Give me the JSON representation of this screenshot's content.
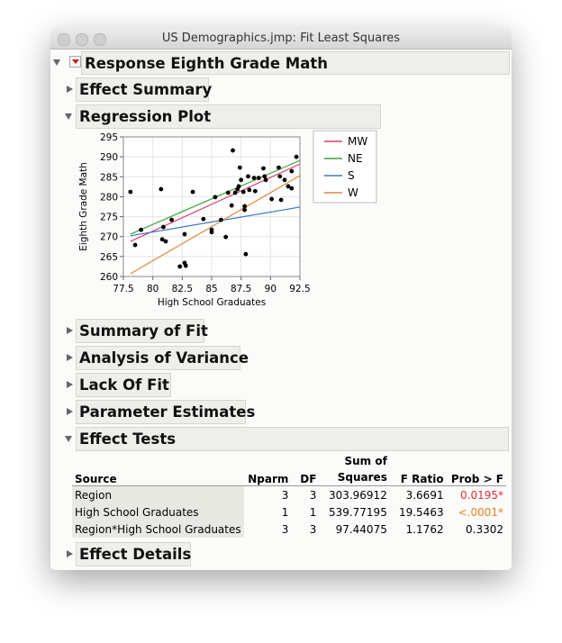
{
  "window": {
    "title": "US Demographics.jmp: Fit Least Squares"
  },
  "report": {
    "title": "Response Eighth Grade Math",
    "sections": [
      {
        "title": "Effect Summary",
        "open": false
      },
      {
        "title": "Regression Plot",
        "open": true
      },
      {
        "title": "Summary of Fit",
        "open": false
      },
      {
        "title": "Analysis of Variance",
        "open": false
      },
      {
        "title": "Lack Of Fit",
        "open": false
      },
      {
        "title": "Parameter Estimates",
        "open": false
      },
      {
        "title": "Effect Tests",
        "open": true
      },
      {
        "title": "Effect Details",
        "open": false
      }
    ]
  },
  "chart_data": {
    "type": "scatter",
    "x_label": "High School Graduates",
    "y_label": "Eighth Grade Math",
    "xlim": [
      77.5,
      92.5
    ],
    "xticks": [
      77.5,
      80,
      82.5,
      85,
      87.5,
      90,
      92.5
    ],
    "ylim": [
      260,
      295
    ],
    "yticks": [
      260,
      265,
      270,
      275,
      280,
      285,
      290,
      295
    ],
    "grid": true,
    "point_color": "#000000",
    "x": [
      78.1,
      78.5,
      79.0,
      80.7,
      80.9,
      80.8,
      81.1,
      81.6,
      82.3,
      82.7,
      82.8,
      82.7,
      83.4,
      84.3,
      85.0,
      85.0,
      85.3,
      85.8,
      86.2,
      86.4,
      86.8,
      86.7,
      87.0,
      87.2,
      87.3,
      87.4,
      87.5,
      87.7,
      87.8,
      87.8,
      87.9,
      88.2,
      88.1,
      88.6,
      88.7,
      89.0,
      89.4,
      89.6,
      89.5,
      90.1,
      90.7,
      90.8,
      90.9,
      91.2,
      91.5,
      91.8,
      92.2,
      91.8
    ],
    "values": [
      281.2,
      267.9,
      271.7,
      281.9,
      272.4,
      269.3,
      268.8,
      274.2,
      262.5,
      263.4,
      262.7,
      270.6,
      281.2,
      274.4,
      271.7,
      271.1,
      279.9,
      274.2,
      269.9,
      281.0,
      291.6,
      277.8,
      281.0,
      281.9,
      282.6,
      287.3,
      284.2,
      281.2,
      277.6,
      276.7,
      265.6,
      281.7,
      285.1,
      284.7,
      281.4,
      284.7,
      287.1,
      284.2,
      285.1,
      279.4,
      287.3,
      285.1,
      279.2,
      284.2,
      282.6,
      286.4,
      290.0,
      282.1
    ],
    "series": [
      {
        "name": "MW",
        "color": "#d6416e",
        "x": [
          78.1,
          92.5
        ],
        "values": [
          268.8,
          288.2
        ]
      },
      {
        "name": "NE",
        "color": "#3aa63a",
        "x": [
          78.1,
          92.5
        ],
        "values": [
          270.6,
          289.1
        ]
      },
      {
        "name": "S",
        "color": "#3b78c2",
        "x": [
          78.1,
          92.5
        ],
        "values": [
          270.2,
          277.4
        ]
      },
      {
        "name": "W",
        "color": "#d98a3c",
        "x": [
          78.1,
          92.5
        ],
        "values": [
          260.7,
          285.3
        ]
      }
    ]
  },
  "effect_tests": {
    "columns": [
      "Source",
      "Nparm",
      "DF",
      "Sum of Squares",
      "F Ratio",
      "Prob > F"
    ],
    "rows": [
      [
        "Region",
        3,
        3,
        303.96912,
        3.6691,
        "0.0195*"
      ],
      [
        "High School Graduates",
        1,
        1,
        539.77195,
        19.5463,
        "<.0001*"
      ],
      [
        "Region*High School Graduates",
        3,
        3,
        97.44075,
        1.1762,
        0.3302
      ]
    ],
    "prob_colors": [
      "#e0303a",
      "#e8841a",
      "#000000"
    ]
  }
}
